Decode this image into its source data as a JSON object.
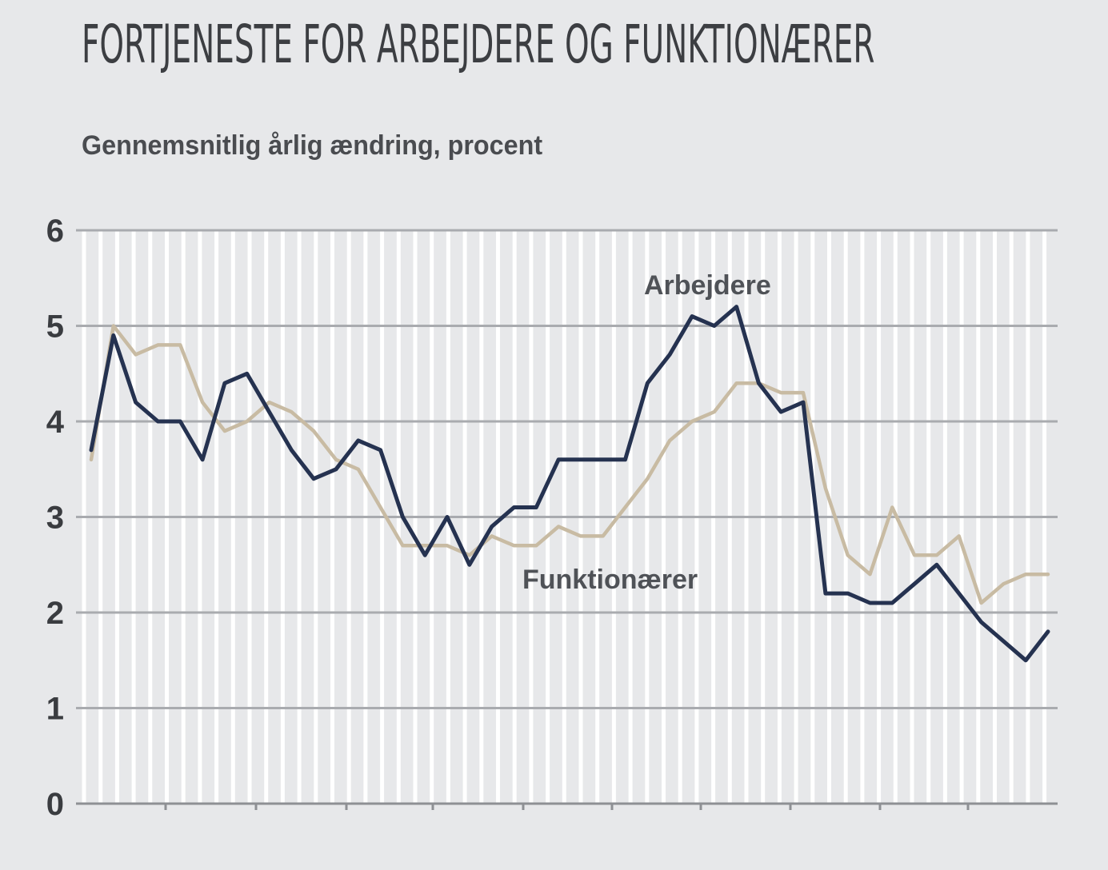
{
  "chart_data": {
    "type": "line",
    "title": "FORTJENESTE FOR ARBEJDERE OG FUNKTIONÆRER",
    "subtitle": "Gennemsnitlig årlig ændring, procent",
    "ylim": [
      0,
      6
    ],
    "yticks": [
      0,
      1,
      2,
      3,
      4,
      5,
      6
    ],
    "grid": true,
    "series": [
      {
        "name": "Arbejdere",
        "color": "#253250",
        "values": [
          3.7,
          4.9,
          4.2,
          4.0,
          4.0,
          3.6,
          4.4,
          4.5,
          4.1,
          3.7,
          3.4,
          3.5,
          3.8,
          3.7,
          3.0,
          2.6,
          3.0,
          2.5,
          2.9,
          3.1,
          3.1,
          3.6,
          3.6,
          3.6,
          3.6,
          4.4,
          4.7,
          5.1,
          5.0,
          5.2,
          4.4,
          4.1,
          4.2,
          2.2,
          2.2,
          2.1,
          2.1,
          2.3,
          2.5,
          2.2,
          1.9,
          1.7,
          1.5,
          1.8
        ]
      },
      {
        "name": "Funktionærer",
        "color": "#c8bba3",
        "values": [
          3.6,
          5.0,
          4.7,
          4.8,
          4.8,
          4.2,
          3.9,
          4.0,
          4.2,
          4.1,
          3.9,
          3.6,
          3.5,
          3.1,
          2.7,
          2.7,
          2.7,
          2.6,
          2.8,
          2.7,
          2.7,
          2.9,
          2.8,
          2.8,
          3.1,
          3.4,
          3.8,
          4.0,
          4.1,
          4.4,
          4.4,
          4.3,
          4.3,
          3.3,
          2.6,
          2.4,
          3.1,
          2.6,
          2.6,
          2.8,
          2.1,
          2.3,
          2.4,
          2.4
        ]
      }
    ],
    "annotations": {
      "arbejdere_label": "Arbejdere",
      "funktionaerer_label": "Funktionærer"
    },
    "axis_color": "#8e9094",
    "grid_color": "#a9abaf",
    "vgrid_color": "#ffffff"
  }
}
